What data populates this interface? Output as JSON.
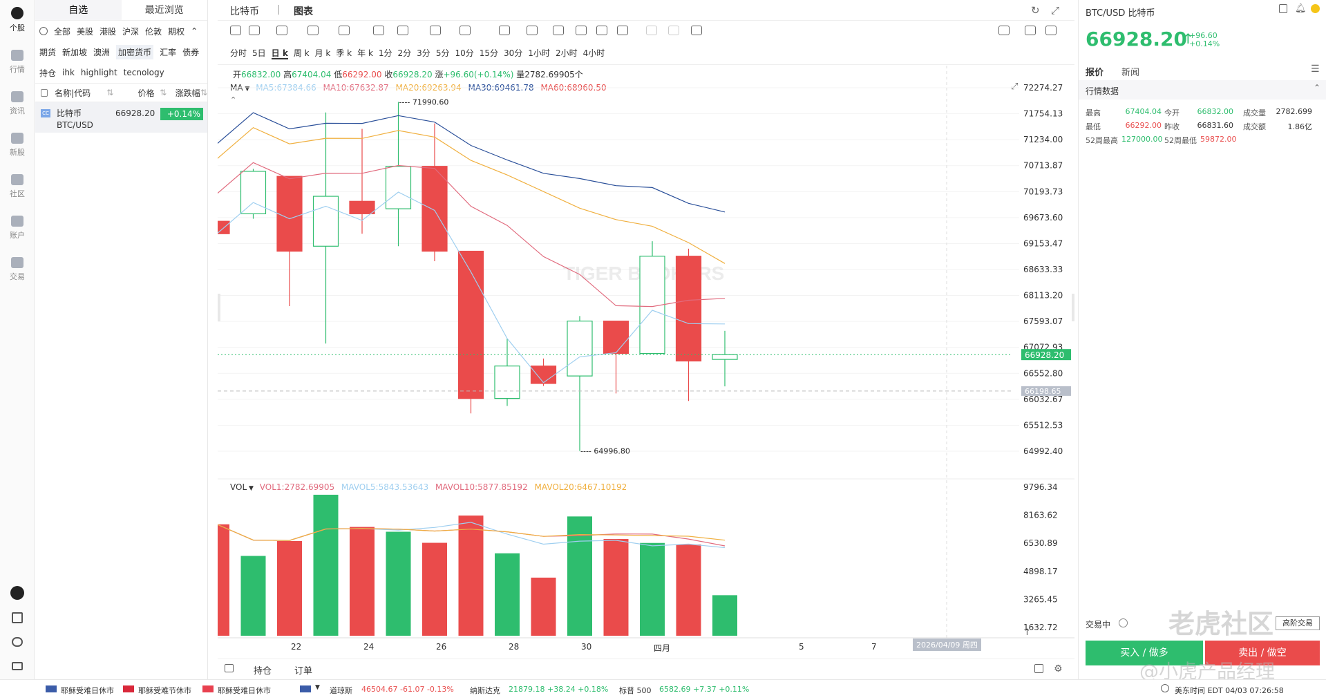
{
  "leftbar": {
    "items": [
      {
        "label": "个股",
        "active": true
      },
      {
        "label": "行情"
      },
      {
        "label": "资讯"
      },
      {
        "label": "新股"
      },
      {
        "label": "社区"
      },
      {
        "label": "账户"
      },
      {
        "label": "交易"
      }
    ]
  },
  "watchlist": {
    "tabs": [
      "自选",
      "最近浏览"
    ],
    "categories1": [
      "全部",
      "美股",
      "港股",
      "沪深",
      "伦敦",
      "期权"
    ],
    "categories2": [
      "期货",
      "新加坡",
      "澳洲",
      "加密货币",
      "汇率",
      "债券"
    ],
    "categories3": [
      "持仓",
      "ihk",
      "highlight",
      "tecnology"
    ],
    "headers": {
      "name": "名称|代码",
      "price": "价格",
      "change": "涨跌幅"
    },
    "rows": [
      {
        "badge": "CC",
        "name": "比特币",
        "code": "BTC/USD",
        "price": "66928.20",
        "change": "+0.14%"
      }
    ]
  },
  "center": {
    "tabs": [
      "比特币",
      "图表"
    ],
    "periods": [
      "分时",
      "5日",
      "日 k",
      "周 k",
      "月 k",
      "季 k",
      "年 k",
      "1分",
      "2分",
      "3分",
      "5分",
      "10分",
      "15分",
      "30分",
      "1小时",
      "2小时",
      "4小时"
    ],
    "active_period": "日 k",
    "ohlc": {
      "open_label": "开",
      "open": "66832.00",
      "high_label": "高",
      "high": "67404.04",
      "low_label": "低",
      "low": "66292.00",
      "close_label": "收",
      "close": "66928.20",
      "change_label": "涨",
      "change": "+96.60(+0.14%)",
      "vol_label": "量",
      "vol": "2782.69905个"
    },
    "ma_line": {
      "label": "MA",
      "ma5": "MA5:67384.66",
      "ma10": "MA10:67632.87",
      "ma20": "MA20:69263.94",
      "ma30": "MA30:69461.78",
      "ma60": "MA60:68960.50"
    },
    "vol_line": {
      "label": "VOL",
      "vol1": "VOL1:2782.69905",
      "mavol5": "MAVOL5:5843.53643",
      "mavol10": "MAVOL10:5877.85192",
      "mavol20": "MAVOL20:6467.10192"
    },
    "price_axis": [
      "72274.27",
      "71754.13",
      "71234.00",
      "70713.87",
      "70193.73",
      "69673.60",
      "69153.47",
      "68633.33",
      "68113.20",
      "67593.07",
      "67072.93",
      "66552.80",
      "66032.67",
      "65512.53",
      "64992.40"
    ],
    "vol_axis": [
      "9796.34",
      "8163.62",
      "6530.89",
      "4898.17",
      "3265.45",
      "1632.72"
    ],
    "current_price_tag": "66928.20",
    "cursor_price_tag": "66198.65",
    "high_annotation": "71990.60",
    "low_annotation": "64996.80",
    "x_labels": [
      "22",
      "24",
      "26",
      "28",
      "30",
      "四月",
      "5",
      "7"
    ],
    "date_tag": "2026/04/09 周四",
    "bottom_tabs": [
      "持仓",
      "订单"
    ],
    "watermark": "TIGER BROKERS"
  },
  "chart_data": {
    "type": "candlestick",
    "candles": [
      {
        "o": 69600,
        "h": 69700,
        "l": 69350,
        "c": 69350
      },
      {
        "o": 69750,
        "h": 70650,
        "l": 69650,
        "c": 70600
      },
      {
        "o": 70500,
        "h": 70500,
        "l": 67900,
        "c": 69000
      },
      {
        "o": 69100,
        "h": 71780,
        "l": 67150,
        "c": 70100
      },
      {
        "o": 70000,
        "h": 71450,
        "l": 69350,
        "c": 69750
      },
      {
        "o": 69850,
        "h": 71990.6,
        "l": 69100,
        "c": 70700
      },
      {
        "o": 70700,
        "h": 71560,
        "l": 68800,
        "c": 69000
      },
      {
        "o": 69000,
        "h": 69000,
        "l": 65750,
        "c": 66050
      },
      {
        "o": 66050,
        "h": 67250,
        "l": 65900,
        "c": 66700
      },
      {
        "o": 66700,
        "h": 66850,
        "l": 66300,
        "c": 66350
      },
      {
        "o": 66500,
        "h": 67700,
        "l": 64996.8,
        "c": 67600
      },
      {
        "o": 67600,
        "h": 67600,
        "l": 66150,
        "c": 66950
      },
      {
        "o": 66950,
        "h": 69200,
        "l": 66950,
        "c": 68900
      },
      {
        "o": 68900,
        "h": 69050,
        "l": 66000,
        "c": 66800
      },
      {
        "o": 66832,
        "h": 67404.04,
        "l": 66292,
        "c": 66928.2
      }
    ],
    "volumes": [
      7650,
      5480,
      6500,
      9680,
      7470,
      7140,
      6380,
      8250,
      5660,
      3990,
      8190,
      6640,
      6370,
      6270,
      2782.7
    ],
    "x_labels": [
      "22",
      "24",
      "26",
      "28",
      "30",
      "四月",
      "5",
      "7"
    ],
    "price_range": [
      64700,
      72400
    ],
    "vol_range": [
      0,
      10200
    ]
  },
  "right": {
    "title": "BTC/USD 比特币",
    "price": "66928.20",
    "arrow": "↑",
    "change": "+96.60",
    "change_pct": "+0.14%",
    "tabs": [
      "报价",
      "新闻"
    ],
    "section": "行情数据",
    "stats": [
      [
        {
          "k": "最高",
          "v": "67404.04",
          "c": "green"
        },
        {
          "k": "今开",
          "v": "66832.00",
          "c": "green"
        },
        {
          "k": "成交量",
          "v": "2782.699",
          "c": "dark"
        }
      ],
      [
        {
          "k": "最低",
          "v": "66292.00",
          "c": "red"
        },
        {
          "k": "昨收",
          "v": "66831.60",
          "c": "dark"
        },
        {
          "k": "成交额",
          "v": "1.86亿",
          "c": "dark"
        }
      ],
      [
        {
          "k": "52周最高",
          "v": "127000.00",
          "c": "green"
        },
        {
          "k": "52周最低",
          "v": "59872.00",
          "c": "red"
        }
      ]
    ],
    "trading_status": "交易中",
    "advanced_btn": "高阶交易",
    "buy_btn": "买入 / 做多",
    "sell_btn": "卖出 / 做空",
    "watermark1": "老虎社区",
    "watermark2": "@小虎产品经理"
  },
  "bottom": {
    "markets": [
      "耶稣受难日休市",
      "耶稣受难节休市",
      "耶稣受难日休市"
    ],
    "indices": [
      {
        "name": "道琼斯",
        "value": "46504.67 -61.07 -0.13%",
        "color": "red"
      },
      {
        "name": "纳斯达克",
        "value": "21879.18 +38.24 +0.18%",
        "color": "green"
      },
      {
        "name": "标普 500",
        "value": "6582.69 +7.37 +0.11%",
        "color": "green"
      }
    ],
    "time": "美东时间  EDT 04/03 07:26:58"
  }
}
